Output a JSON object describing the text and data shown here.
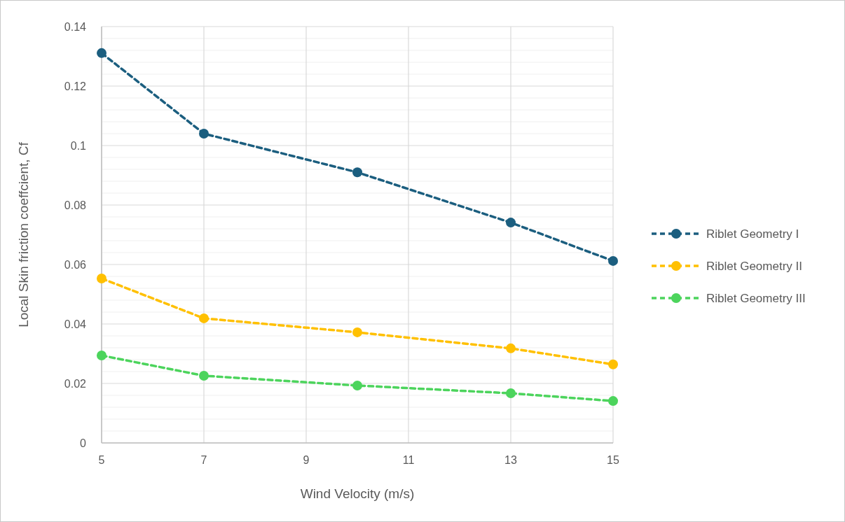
{
  "chart_data": {
    "type": "line",
    "xlabel": "Wind Velocity (m/s)",
    "ylabel": "Local Skin friction coeffcient, Cf",
    "x": [
      5,
      7,
      10,
      13,
      15
    ],
    "series": [
      {
        "name": "Riblet Geometry I",
        "color": "#1b5e7f",
        "values": [
          0.1311,
          0.104,
          0.091,
          0.0741,
          0.0612
        ]
      },
      {
        "name": "Riblet Geometry II",
        "color": "#ffc000",
        "values": [
          0.0553,
          0.0419,
          0.0372,
          0.0318,
          0.0264
        ]
      },
      {
        "name": "Riblet Geometry III",
        "color": "#4cd45c",
        "values": [
          0.0294,
          0.0226,
          0.0193,
          0.0167,
          0.0141
        ]
      }
    ],
    "xlim": [
      5,
      15
    ],
    "xticks": [
      5,
      7,
      9,
      11,
      13,
      15
    ],
    "ylim": [
      0,
      0.14
    ],
    "yticks": [
      0,
      {
        "value": 0.004,
        "label": null
      },
      {
        "value": 0.008,
        "label": null
      },
      {
        "value": 0.012,
        "label": null
      },
      {
        "value": 0.016,
        "label": null
      },
      0.02,
      {
        "value": 0.024,
        "label": null
      },
      {
        "value": 0.028,
        "label": null
      },
      {
        "value": 0.032,
        "label": null
      },
      {
        "value": 0.036,
        "label": null
      },
      0.04,
      {
        "value": 0.044,
        "label": null
      },
      {
        "value": 0.048,
        "label": null
      },
      {
        "value": 0.052,
        "label": null
      },
      {
        "value": 0.056,
        "label": null
      },
      0.06,
      {
        "value": 0.064,
        "label": null
      },
      {
        "value": 0.068,
        "label": null
      },
      {
        "value": 0.072,
        "label": null
      },
      {
        "value": 0.076,
        "label": null
      },
      0.08,
      {
        "value": 0.084,
        "label": null
      },
      {
        "value": 0.088,
        "label": null
      },
      {
        "value": 0.092,
        "label": null
      },
      {
        "value": 0.096,
        "label": null
      },
      0.1,
      {
        "value": 0.104,
        "label": null
      },
      {
        "value": 0.108,
        "label": null
      },
      {
        "value": 0.112,
        "label": null
      },
      {
        "value": 0.116,
        "label": null
      },
      0.12,
      {
        "value": 0.124,
        "label": null
      },
      {
        "value": 0.128,
        "label": null
      },
      {
        "value": 0.132,
        "label": null
      },
      {
        "value": 0.136,
        "label": null
      },
      0.14
    ],
    "grid": true,
    "legend": "right",
    "marker": "circle",
    "line_style": "dashed"
  }
}
